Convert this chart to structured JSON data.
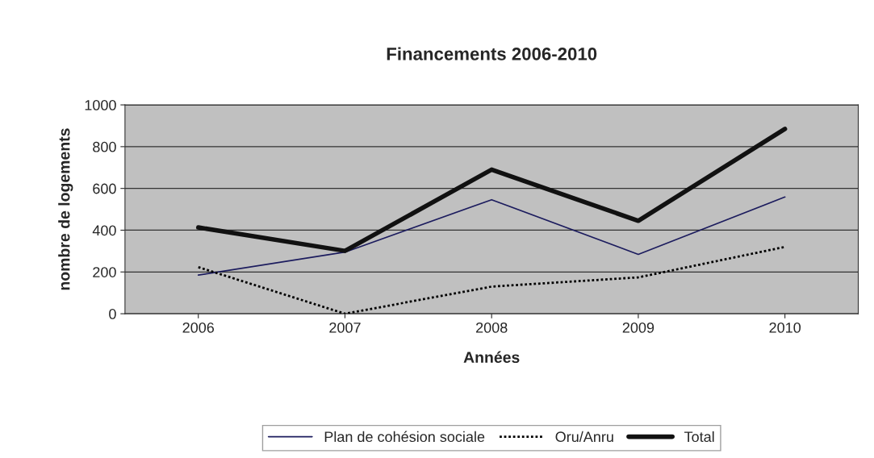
{
  "chart_data": {
    "type": "line",
    "title": "Financements 2006-2010",
    "xlabel": "Années",
    "ylabel": "nombre de logements",
    "categories": [
      "2006",
      "2007",
      "2008",
      "2009",
      "2010"
    ],
    "series": [
      {
        "name": "Plan de cohésion sociale",
        "color": "#1c1c5e",
        "line_style": "solid",
        "values": [
          185,
          295,
          546,
          284,
          559
        ]
      },
      {
        "name": "Oru/Anru",
        "color": "#000000",
        "line_style": "dotted",
        "values": [
          223,
          0,
          130,
          174,
          320
        ]
      },
      {
        "name": "Total",
        "color": "#111111",
        "line_style": "solid",
        "values": [
          413,
          301,
          690,
          445,
          885
        ]
      }
    ],
    "ylim": [
      0,
      1000
    ],
    "yticks": [
      0,
      200,
      400,
      600,
      800,
      1000
    ],
    "grid": "y",
    "legend": "bottom",
    "marker": "none"
  }
}
